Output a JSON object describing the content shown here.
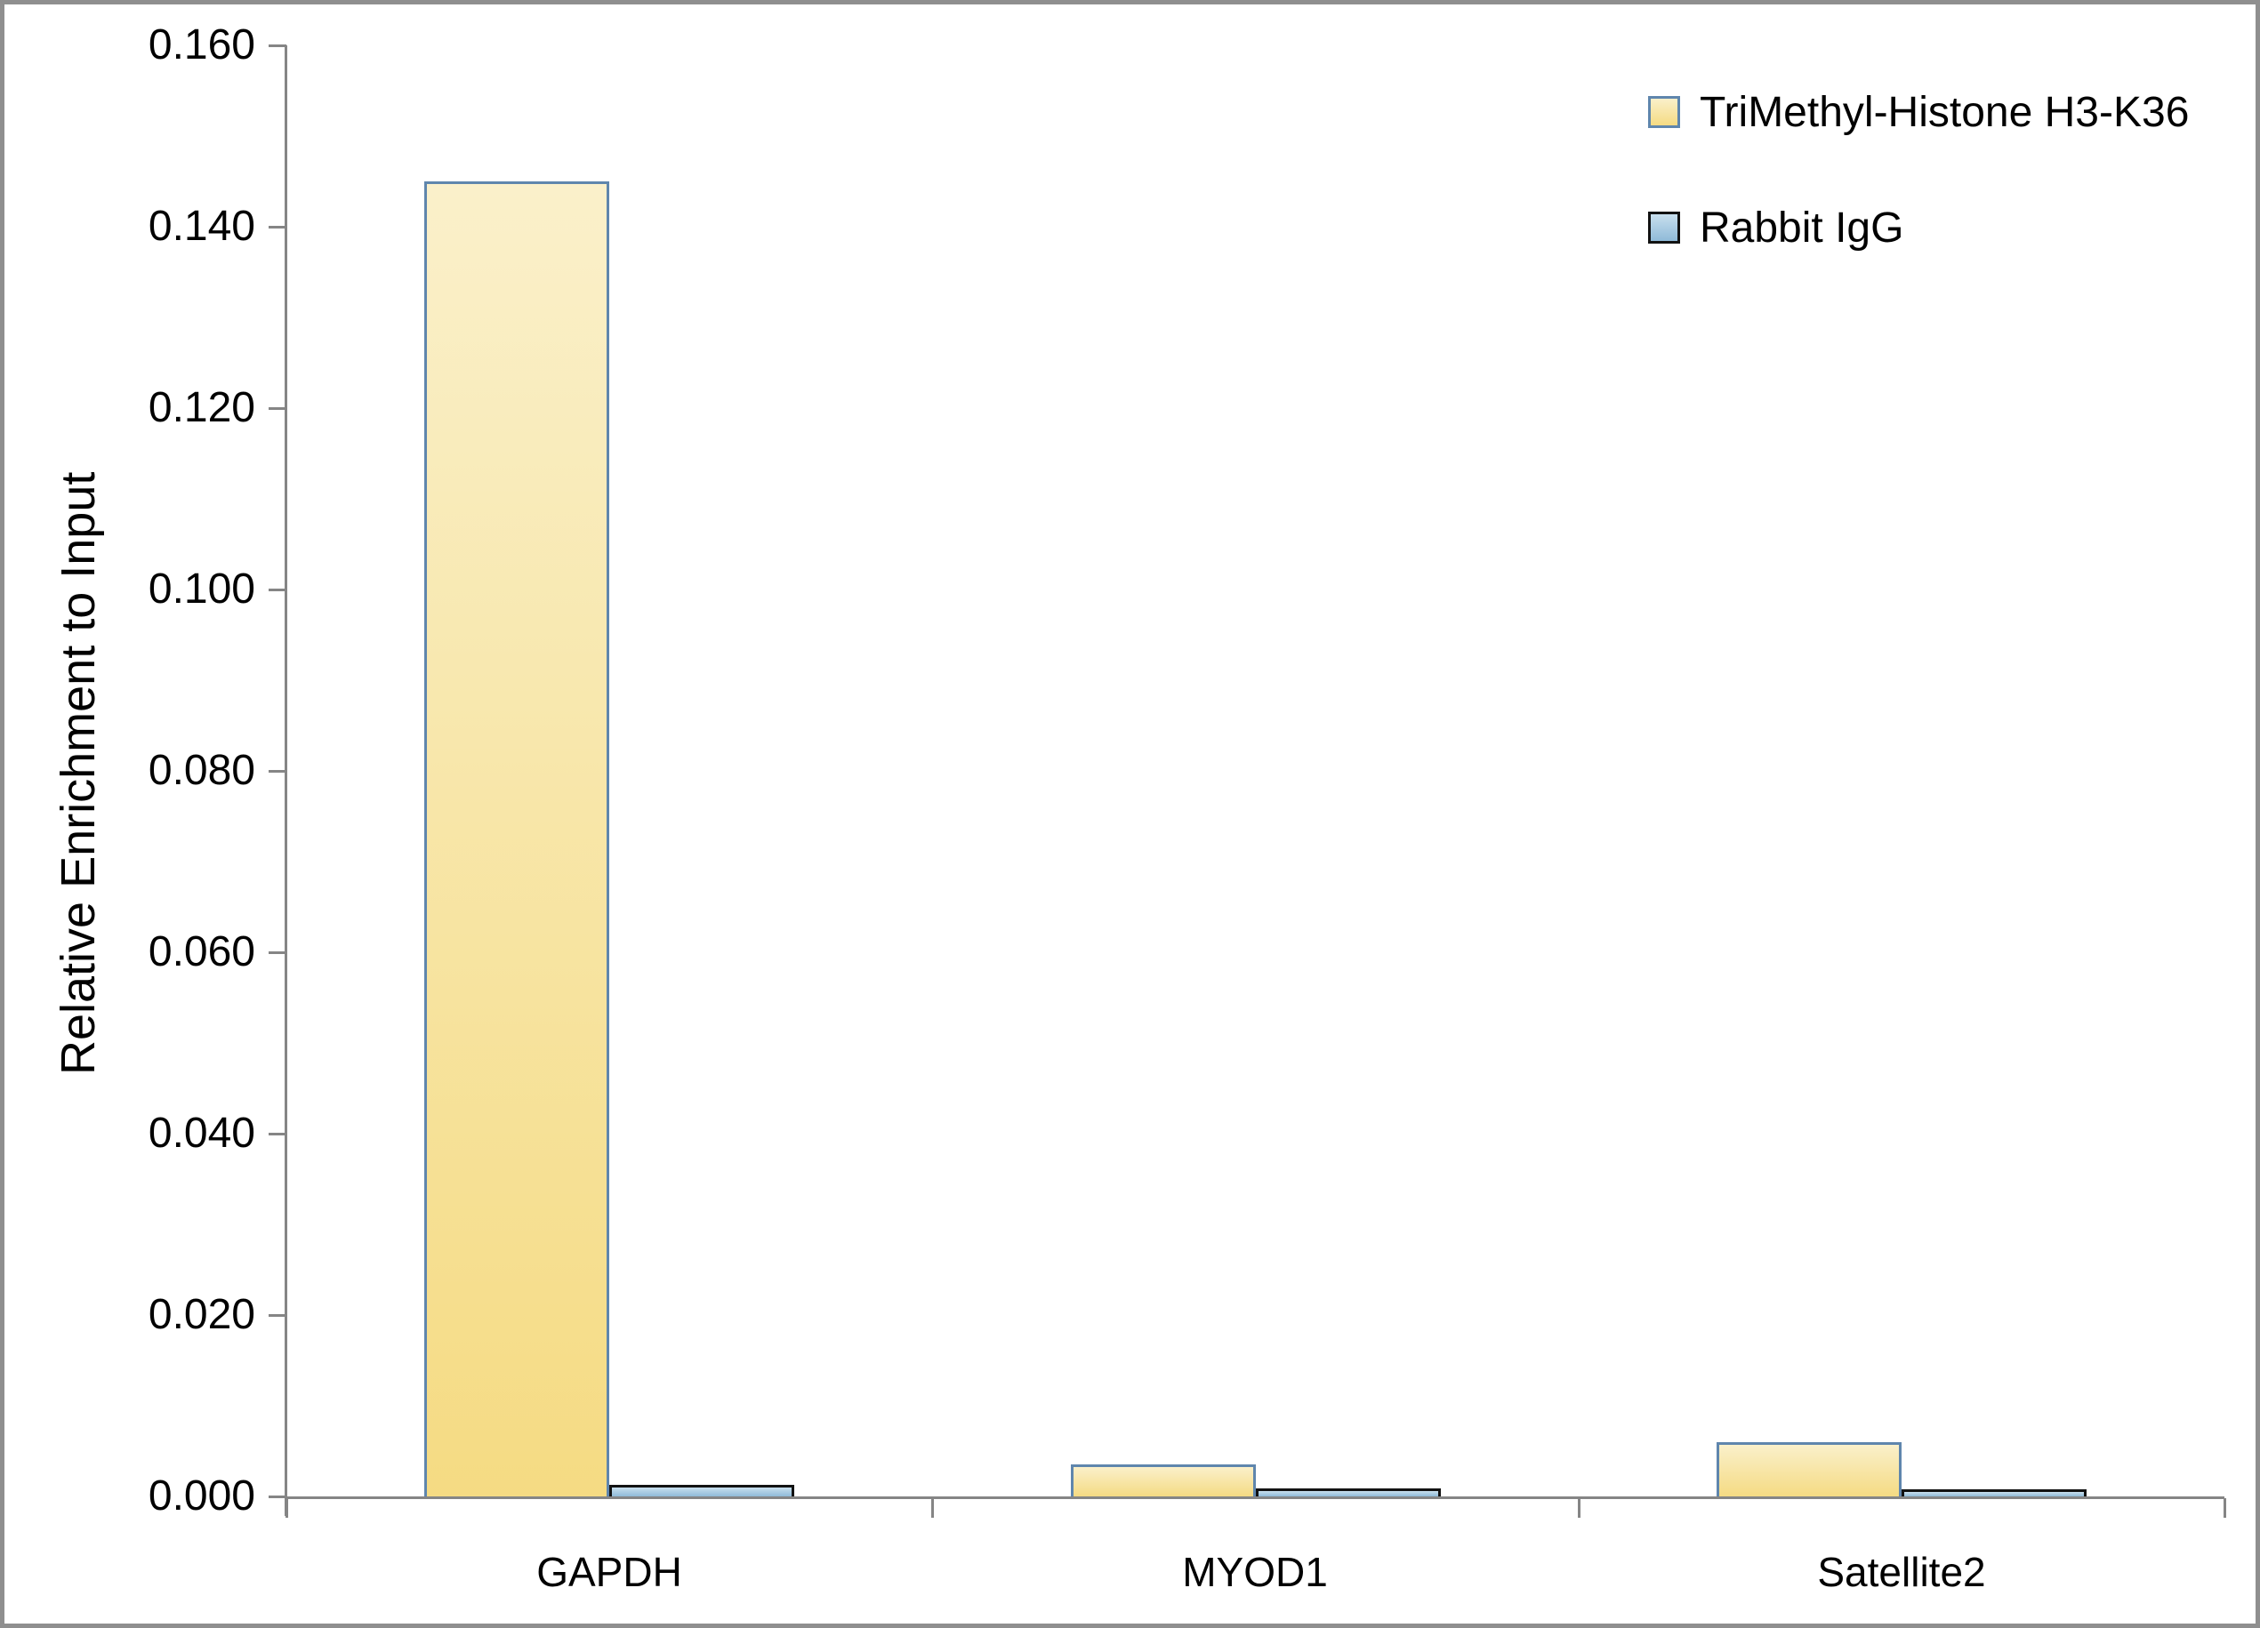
{
  "chart_data": {
    "type": "bar",
    "title": "",
    "xlabel": "",
    "ylabel": "Relative Enrichment to Input",
    "categories": [
      "GAPDH",
      "MYOD1",
      "Satellite2"
    ],
    "series": [
      {
        "name": "TriMethyl-Histone H3-K36",
        "key": "h3k36",
        "values": [
          0.145,
          0.0035,
          0.006
        ],
        "fill_top": "#FAF0CA",
        "fill_bottom": "#F5DB83",
        "border": "#5F86AD"
      },
      {
        "name": "Rabbit IgG",
        "key": "igg",
        "values": [
          0.0013,
          0.0009,
          0.0008
        ],
        "fill_top": "#C8DFEE",
        "fill_bottom": "#8FBAD8",
        "border": "#121212"
      }
    ],
    "ylim": [
      0,
      0.16
    ],
    "yticks": [
      "0.000",
      "0.020",
      "0.040",
      "0.060",
      "0.080",
      "0.100",
      "0.120",
      "0.140",
      "0.160"
    ],
    "grid": false,
    "legend_position": "top-right"
  },
  "colors": {
    "axis": "#858585",
    "frame_border": "#8F8F8F",
    "text": "#000000",
    "background": "#FFFFFF"
  }
}
